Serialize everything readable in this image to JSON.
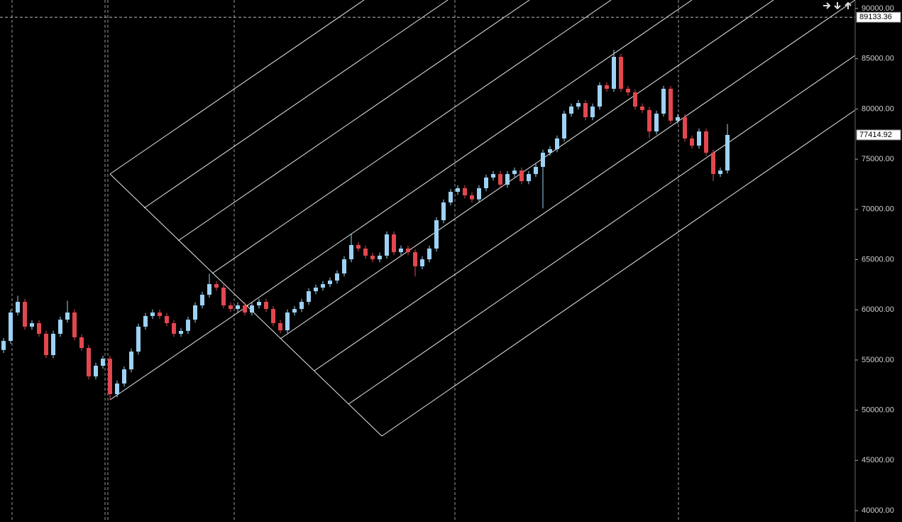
{
  "chart_data": {
    "type": "candlestick",
    "open": [
      56000,
      56900,
      59730,
      60790,
      58320,
      58670,
      57610,
      55490,
      57610,
      59020,
      59730,
      57260,
      56200,
      53370,
      54430,
      55130,
      51600,
      52660,
      54070,
      55840,
      58320,
      59380,
      59730,
      59380,
      58670,
      57610,
      57900,
      59020,
      60440,
      61500,
      62560,
      62210,
      60440,
      60080,
      60440,
      59730,
      60440,
      60790,
      60080,
      58670,
      57960,
      59730,
      60080,
      60790,
      61850,
      62210,
      62560,
      62910,
      63620,
      65030,
      66450,
      66100,
      65390,
      65030,
      65390,
      67510,
      65740,
      66100,
      65740,
      64330,
      65030,
      66100,
      68920,
      70690,
      71750,
      72110,
      71400,
      71000,
      72110,
      73170,
      73520,
      72460,
      73520,
      73870,
      72810,
      73520,
      74230,
      75640,
      76000,
      77060,
      79530,
      80240,
      80590,
      79180,
      80240,
      82360,
      82010,
      85190,
      82010,
      81650,
      80240,
      79890,
      77760,
      79530,
      82010,
      78830,
      79180,
      77060,
      76350,
      77760,
      75640,
      73520,
      73870
    ],
    "high": [
      57200,
      60030,
      61400,
      61090,
      58970,
      58970,
      57910,
      57910,
      59320,
      60900,
      60030,
      57560,
      56500,
      54730,
      55430,
      55430,
      52960,
      54370,
      56140,
      58620,
      59680,
      60030,
      60030,
      59680,
      58970,
      58200,
      59320,
      60740,
      61800,
      63600,
      62860,
      62510,
      60740,
      60740,
      60740,
      60740,
      61090,
      61090,
      60380,
      58970,
      60030,
      60380,
      61090,
      62150,
      62510,
      62860,
      63210,
      63920,
      65330,
      67600,
      66750,
      66400,
      65690,
      65690,
      67810,
      67810,
      66400,
      66400,
      66040,
      65330,
      66400,
      69220,
      70990,
      72050,
      72410,
      72410,
      71700,
      72410,
      73470,
      73820,
      73820,
      73820,
      74170,
      74170,
      73820,
      74530,
      75940,
      76300,
      77360,
      79830,
      80540,
      80890,
      80890,
      80540,
      82660,
      82660,
      85890,
      85490,
      82310,
      81950,
      80540,
      80190,
      79830,
      82310,
      82310,
      79480,
      79480,
      77360,
      78060,
      78060,
      75940,
      74170,
      78500
    ],
    "low": [
      55700,
      56600,
      59430,
      58020,
      58020,
      57310,
      55190,
      55190,
      57310,
      58720,
      56960,
      55900,
      53070,
      53070,
      54130,
      51000,
      51300,
      52360,
      53770,
      55540,
      58020,
      59080,
      59080,
      58370,
      57310,
      57310,
      57600,
      58720,
      60140,
      61200,
      61910,
      60140,
      59780,
      59780,
      59430,
      59430,
      60140,
      59780,
      58370,
      57660,
      57660,
      59430,
      59780,
      60490,
      61550,
      61910,
      62260,
      62610,
      63320,
      64730,
      65800,
      65090,
      64730,
      64730,
      65090,
      65440,
      65440,
      65440,
      63330,
      64030,
      64730,
      65800,
      68620,
      70390,
      71450,
      71100,
      70700,
      70700,
      71810,
      72870,
      72160,
      72160,
      73220,
      72510,
      72510,
      73220,
      70100,
      75340,
      75700,
      76760,
      79230,
      79940,
      78880,
      78880,
      79940,
      81710,
      81710,
      81710,
      81350,
      79940,
      79590,
      77100,
      77460,
      79230,
      78530,
      78530,
      76760,
      76050,
      76050,
      75340,
      72800,
      73220,
      73570
    ],
    "close": [
      56900,
      59730,
      60790,
      58320,
      58670,
      57610,
      55490,
      57610,
      59020,
      59730,
      57260,
      56200,
      53370,
      54430,
      55130,
      51600,
      52660,
      54070,
      55840,
      58320,
      59380,
      59730,
      59380,
      58670,
      57610,
      57900,
      59020,
      60440,
      61500,
      62560,
      62210,
      60440,
      60080,
      60440,
      59730,
      60440,
      60790,
      60080,
      58670,
      57960,
      59730,
      60080,
      60790,
      61850,
      62210,
      62560,
      62910,
      63620,
      65030,
      66450,
      66100,
      65390,
      65030,
      65390,
      67510,
      65740,
      66100,
      65740,
      64330,
      65030,
      66100,
      68920,
      70690,
      71750,
      72110,
      71400,
      71000,
      72110,
      73170,
      73520,
      72460,
      73520,
      73870,
      72810,
      73520,
      74230,
      75640,
      76000,
      77060,
      79530,
      80240,
      80590,
      79180,
      80240,
      82360,
      82010,
      85190,
      82010,
      81650,
      80240,
      79890,
      77760,
      79530,
      82010,
      78830,
      79180,
      77060,
      76350,
      77760,
      75640,
      73520,
      73870,
      77414.92
    ],
    "up_color": "#9dd2f4",
    "down_color": "#e2474f",
    "ylim": [
      38870,
      90850
    ],
    "yticks": [
      {
        "value": 40000,
        "label": "40000.00"
      },
      {
        "value": 45000,
        "label": "45000.00"
      },
      {
        "value": 50000,
        "label": "50000.00"
      },
      {
        "value": 55000,
        "label": "55000.00"
      },
      {
        "value": 60000,
        "label": "60000.00"
      },
      {
        "value": 65000,
        "label": "65000.00"
      },
      {
        "value": 70000,
        "label": "70000.00"
      },
      {
        "value": 75000,
        "label": "75000.00"
      },
      {
        "value": 80000,
        "label": "80000.00"
      },
      {
        "value": 85000,
        "label": "85000.00"
      },
      {
        "value": 90000,
        "label": "90000.00"
      }
    ],
    "crosshair": 89133.36,
    "last_price": 77414.92
  }
}
